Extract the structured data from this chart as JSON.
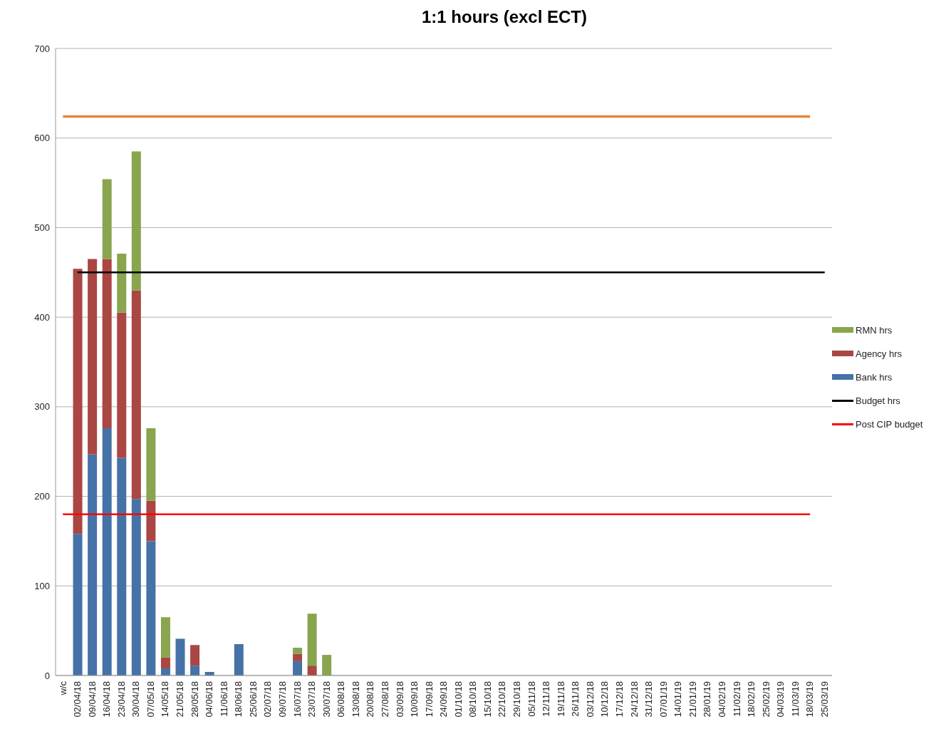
{
  "chart_data": {
    "type": "bar",
    "title": "1:1 hours (excl ECT)",
    "stacked": true,
    "grid": "y",
    "legend": "right",
    "ylim": [
      0,
      700
    ],
    "yticks": [
      0,
      100,
      200,
      300,
      400,
      500,
      600,
      700
    ],
    "categories": [
      "w/c",
      "02/04/18",
      "09/04/18",
      "16/04/18",
      "23/04/18",
      "30/04/18",
      "07/05/18",
      "14/05/18",
      "21/05/18",
      "28/05/18",
      "04/06/18",
      "11/06/18",
      "18/06/18",
      "25/06/18",
      "02/07/18",
      "09/07/18",
      "16/07/18",
      "23/07/18",
      "30/07/18",
      "06/08/18",
      "13/08/18",
      "20/08/18",
      "27/08/18",
      "03/09/18",
      "10/09/18",
      "17/09/18",
      "24/09/18",
      "01/10/18",
      "08/10/18",
      "15/10/18",
      "22/10/18",
      "29/10/18",
      "05/11/18",
      "12/11/18",
      "19/11/18",
      "26/11/18",
      "03/12/18",
      "10/12/18",
      "17/12/18",
      "24/12/18",
      "31/12/18",
      "07/01/19",
      "14/01/19",
      "21/01/19",
      "28/01/19",
      "04/02/19",
      "11/02/19",
      "18/02/19",
      "25/02/19",
      "04/03/19",
      "11/03/19",
      "18/03/19",
      "25/03/19"
    ],
    "series": [
      {
        "name": "Bank hrs",
        "color": "#4572a7",
        "values": [
          null,
          158,
          247,
          276,
          243,
          197,
          150,
          8,
          41,
          11,
          4,
          null,
          35,
          null,
          null,
          null,
          16,
          null,
          null,
          null,
          null,
          null,
          null,
          null,
          null,
          null,
          null,
          null,
          null,
          null,
          null,
          null,
          null,
          null,
          null,
          null,
          null,
          null,
          null,
          null,
          null,
          null,
          null,
          null,
          null,
          null,
          null,
          null,
          null,
          null,
          null,
          null,
          null
        ]
      },
      {
        "name": "Agency hrs",
        "color": "#aa4643",
        "values": [
          null,
          296,
          218,
          189,
          162,
          233,
          45,
          12,
          null,
          23,
          null,
          null,
          null,
          null,
          null,
          null,
          8,
          11,
          null,
          null,
          null,
          null,
          null,
          null,
          null,
          null,
          null,
          null,
          null,
          null,
          null,
          null,
          null,
          null,
          null,
          null,
          null,
          null,
          null,
          null,
          null,
          null,
          null,
          null,
          null,
          null,
          null,
          null,
          null,
          null,
          null,
          null,
          null
        ]
      },
      {
        "name": "RMN hrs",
        "color": "#89a54e",
        "values": [
          null,
          null,
          null,
          89,
          66,
          155,
          81,
          45,
          null,
          null,
          null,
          null,
          null,
          null,
          null,
          null,
          7,
          58,
          23,
          null,
          null,
          null,
          null,
          null,
          null,
          null,
          null,
          null,
          null,
          null,
          null,
          null,
          null,
          null,
          null,
          null,
          null,
          null,
          null,
          null,
          null,
          null,
          null,
          null,
          null,
          null,
          null,
          null,
          null,
          null,
          null,
          null,
          null
        ]
      },
      {
        "name": "Budget hrs",
        "type": "line",
        "color": "#000000",
        "values": [
          null,
          450,
          450,
          450,
          450,
          450,
          450,
          450,
          450,
          450,
          450,
          450,
          450,
          450,
          450,
          450,
          450,
          450,
          450,
          450,
          450,
          450,
          450,
          450,
          450,
          450,
          450,
          450,
          450,
          450,
          450,
          450,
          450,
          450,
          450,
          450,
          450,
          450,
          450,
          450,
          450,
          450,
          450,
          450,
          450,
          450,
          450,
          450,
          450,
          450,
          450,
          450,
          450
        ]
      },
      {
        "name": "Post CIP budget",
        "type": "line",
        "color": "#ff0000",
        "values": [
          180,
          180,
          180,
          180,
          180,
          180,
          180,
          180,
          180,
          180,
          180,
          180,
          180,
          180,
          180,
          180,
          180,
          180,
          180,
          180,
          180,
          180,
          180,
          180,
          180,
          180,
          180,
          180,
          180,
          180,
          180,
          180,
          180,
          180,
          180,
          180,
          180,
          180,
          180,
          180,
          180,
          180,
          180,
          180,
          180,
          180,
          180,
          180,
          180,
          180,
          180,
          180,
          null
        ]
      },
      {
        "type": "line",
        "color": "#e8853a",
        "values": [
          624,
          624,
          624,
          624,
          624,
          624,
          624,
          624,
          624,
          624,
          624,
          624,
          624,
          624,
          624,
          624,
          624,
          624,
          624,
          624,
          624,
          624,
          624,
          624,
          624,
          624,
          624,
          624,
          624,
          624,
          624,
          624,
          624,
          624,
          624,
          624,
          624,
          624,
          624,
          624,
          624,
          624,
          624,
          624,
          624,
          624,
          624,
          624,
          624,
          624,
          624,
          624,
          null
        ]
      }
    ]
  }
}
